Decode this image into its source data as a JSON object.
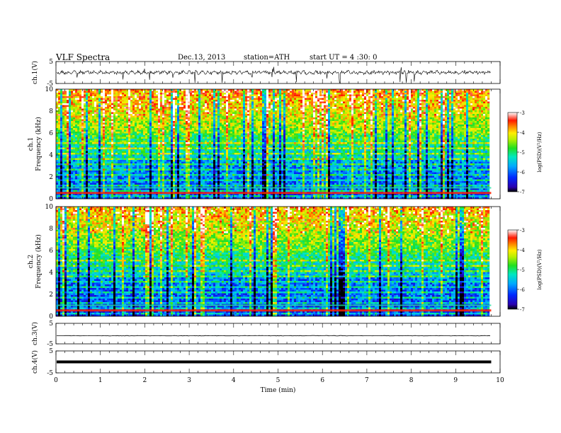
{
  "header": {
    "title": "VLF  Spectra",
    "date": "Dec.13, 2013",
    "station": "station=ATH",
    "start": "start  UT  =   4 :30: 0"
  },
  "chart_data": [
    {
      "type": "line",
      "name": "ch1-waveform",
      "ylabel": "ch.1(V)",
      "xlim": [
        0,
        10
      ],
      "ylim": [
        -5,
        5
      ],
      "yticks": [
        "5",
        "-5"
      ],
      "data_end_min": 9.8
    },
    {
      "type": "heatmap",
      "name": "ch1-spectrogram",
      "ylabel": [
        "ch.1",
        "Frequency  (kHz)"
      ],
      "xlim": [
        0,
        10
      ],
      "ylim": [
        0,
        10
      ],
      "yticks": [
        "0",
        "2",
        "4",
        "6",
        "8",
        "10"
      ],
      "data_end_min": 9.8,
      "colorbar": {
        "label": "log(PSD)(V²/Hz)",
        "range": [
          -7,
          -3
        ],
        "ticks": [
          "-3",
          "-4",
          "-5",
          "-6",
          "-7"
        ]
      }
    },
    {
      "type": "heatmap",
      "name": "ch2-spectrogram",
      "ylabel": [
        "ch.2",
        "Frequency  (kHz)"
      ],
      "xlim": [
        0,
        10
      ],
      "ylim": [
        0,
        10
      ],
      "yticks": [
        "0",
        "2",
        "4",
        "6",
        "8",
        "10"
      ],
      "data_end_min": 9.8,
      "colorbar": {
        "label": "log(PSD)(V²/Hz)",
        "range": [
          -7,
          -3
        ],
        "ticks": [
          "-3",
          "-4",
          "-5",
          "-6",
          "-7"
        ]
      }
    },
    {
      "type": "line",
      "name": "ch3-waveform",
      "ylabel": "ch.3(V)",
      "xlim": [
        0,
        10
      ],
      "ylim": [
        -5,
        5
      ],
      "yticks": [
        "5",
        "-5"
      ],
      "data_end_min": 9.8
    },
    {
      "type": "line",
      "name": "ch4-waveform",
      "ylabel": "ch.4(V)",
      "xlim": [
        0,
        10
      ],
      "ylim": [
        -5,
        5
      ],
      "yticks": [
        "5",
        "-5"
      ],
      "data_end_min": 9.8
    }
  ],
  "xaxis": {
    "label": "Time  (min)",
    "ticks": [
      "0",
      "1",
      "2",
      "3",
      "4",
      "5",
      "6",
      "7",
      "8",
      "9",
      "10"
    ]
  }
}
